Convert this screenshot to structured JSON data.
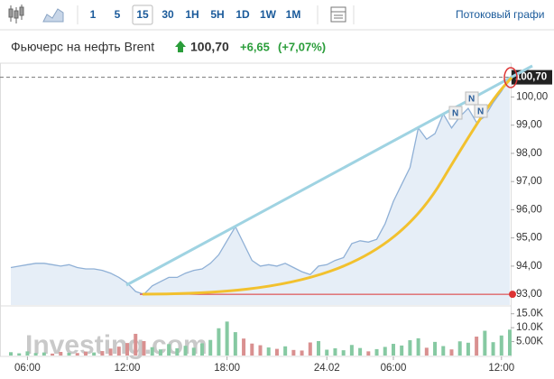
{
  "toolbar": {
    "intervals": [
      "1",
      "5",
      "15",
      "30",
      "1H",
      "5H",
      "1D",
      "1W",
      "1M"
    ],
    "selected_index": 2,
    "streaming": "Потоковый графи"
  },
  "header": {
    "name": "Фьючерс на нефть Brent",
    "price": "100,70",
    "change": "+6,65",
    "change_pct": "(+7,07%)"
  },
  "watermark": "Investing.com",
  "chart_data": {
    "type": "line",
    "categories": [
      null,
      null,
      "06:00",
      null,
      null,
      null,
      null,
      null,
      null,
      null,
      null,
      null,
      null,
      null,
      "12:00",
      null,
      null,
      null,
      null,
      null,
      null,
      null,
      null,
      null,
      null,
      null,
      "18:00",
      null,
      null,
      null,
      null,
      null,
      null,
      null,
      null,
      null,
      null,
      null,
      "24.02",
      null,
      null,
      null,
      null,
      null,
      null,
      null,
      "06:00",
      null,
      null,
      null,
      null,
      null,
      null,
      null,
      null,
      null,
      null,
      null,
      null,
      "12:00",
      null
    ],
    "values": [
      93.95,
      94.0,
      94.05,
      94.1,
      94.1,
      94.05,
      94.0,
      94.05,
      93.95,
      93.9,
      93.9,
      93.85,
      93.75,
      93.6,
      93.4,
      93.1,
      93.0,
      93.3,
      93.45,
      93.6,
      93.6,
      93.75,
      93.85,
      93.9,
      94.1,
      94.4,
      94.9,
      95.4,
      94.8,
      94.2,
      94.0,
      94.05,
      94.0,
      94.1,
      93.95,
      93.8,
      93.7,
      94.0,
      94.05,
      94.2,
      94.3,
      94.8,
      94.9,
      94.85,
      94.95,
      95.5,
      96.3,
      96.9,
      97.5,
      98.9,
      98.5,
      98.7,
      99.4,
      98.9,
      99.3,
      99.6,
      99.1,
      99.3,
      99.8,
      100.2,
      100.7
    ],
    "volume": [
      1200,
      800,
      1500,
      900,
      1100,
      700,
      1300,
      1000,
      900,
      1400,
      1100,
      1600,
      2500,
      3200,
      4500,
      7800,
      5200,
      3000,
      2200,
      4100,
      2600,
      3500,
      2800,
      4400,
      5600,
      9800,
      12200,
      8400,
      6100,
      4300,
      3700,
      2900,
      2400,
      3300,
      2000,
      1800,
      4700,
      5200,
      2100,
      2600,
      1900,
      3800,
      2700,
      1500,
      2300,
      3100,
      4200,
      3600,
      5500,
      6200,
      2800,
      4900,
      3400,
      2200,
      5100,
      4600,
      6800,
      8900,
      4800,
      7200,
      9300
    ],
    "color": "#8fb0d6",
    "fill": "#e6eef7",
    "up_color": "#86c9a2",
    "down_color": "#d99090",
    "ylim": [
      92.62,
      101.2
    ],
    "yticks": [
      {
        "value": 93,
        "label": "93,00"
      },
      {
        "value": 94,
        "label": "94,00"
      },
      {
        "value": 95,
        "label": "95,00"
      },
      {
        "value": 96,
        "label": "96,00"
      },
      {
        "value": 97,
        "label": "97,00"
      },
      {
        "value": 98,
        "label": "98,00"
      },
      {
        "value": 99,
        "label": "99,00"
      },
      {
        "value": 100,
        "label": "100,00"
      }
    ],
    "y2lim": [
      0,
      17500
    ],
    "y2ticks": [
      {
        "value": 5000,
        "label": "5.00K"
      },
      {
        "value": 10000,
        "label": "10.0K"
      },
      {
        "value": 15000,
        "label": "15.0K"
      }
    ],
    "last_price": {
      "value": 100.7,
      "label": "100,70"
    },
    "reference_line": 93
  }
}
